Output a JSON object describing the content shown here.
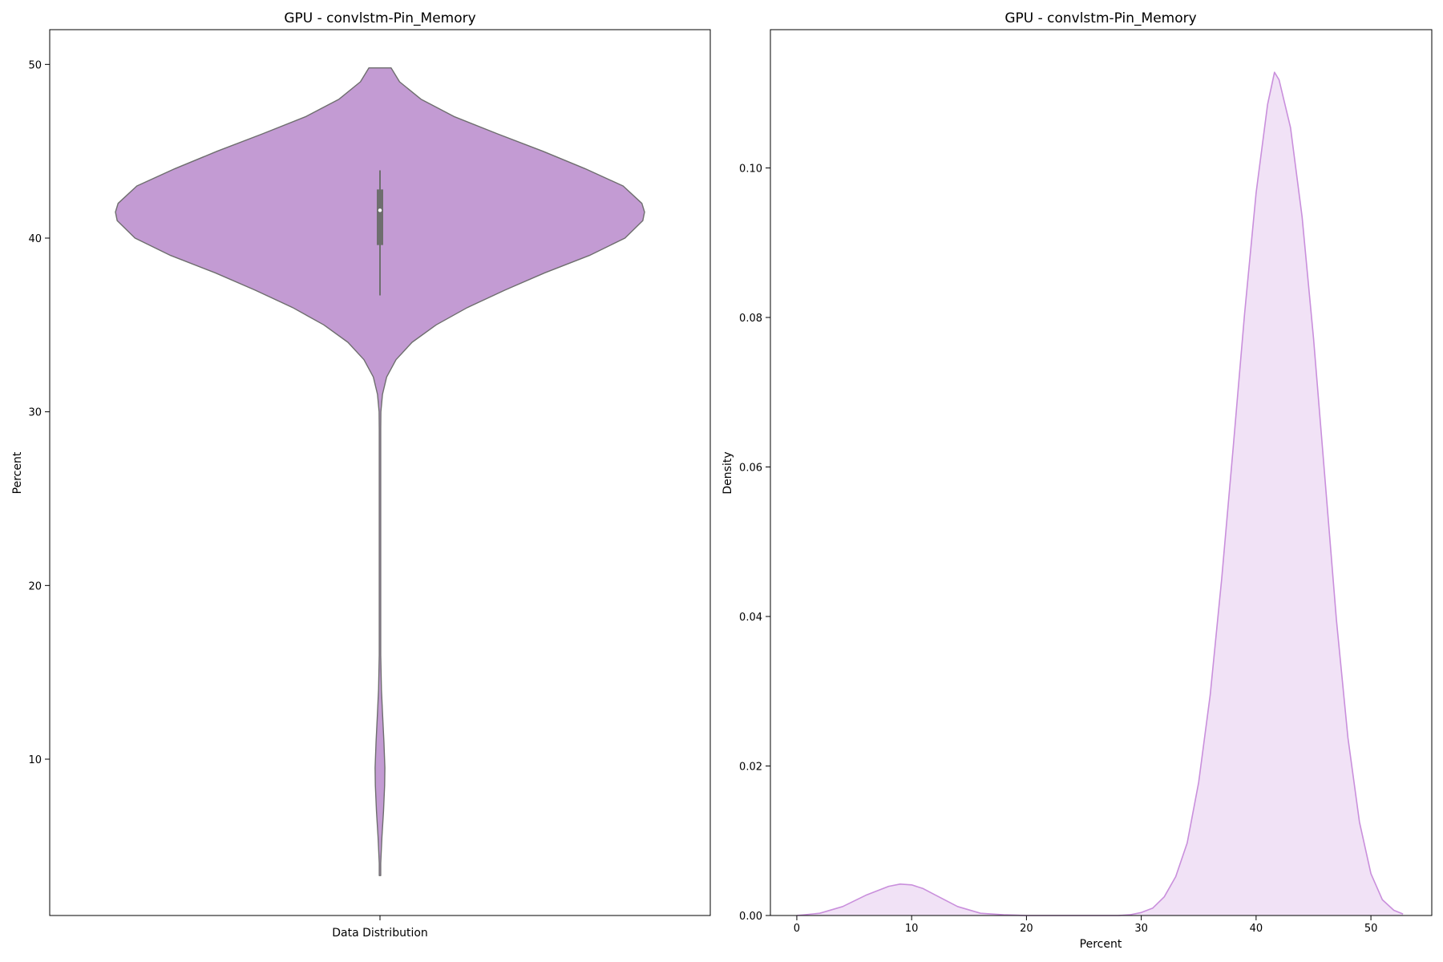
{
  "chart_data": [
    {
      "type": "violin",
      "title": "GPU - convlstm-Pin_Memory",
      "xlabel": "Data Distribution",
      "ylabel": "Percent",
      "categories": [
        "Data Distribution"
      ],
      "ylim": [
        1,
        52
      ],
      "yticks": [
        10,
        20,
        30,
        40,
        50
      ],
      "violin_color": "#c39bd3",
      "edge_color": "#6e6e6e",
      "violin_range": [
        3.3,
        49.8
      ],
      "distribution_profile": [
        {
          "y": 3.3,
          "w": 0.0
        },
        {
          "y": 4.0,
          "w": 0.08
        },
        {
          "y": 5.5,
          "w": 0.22
        },
        {
          "y": 7.0,
          "w": 0.4
        },
        {
          "y": 8.5,
          "w": 0.52
        },
        {
          "y": 9.5,
          "w": 0.55
        },
        {
          "y": 11.0,
          "w": 0.44
        },
        {
          "y": 12.5,
          "w": 0.3
        },
        {
          "y": 14.0,
          "w": 0.16
        },
        {
          "y": 16.0,
          "w": 0.04
        },
        {
          "y": 18.0,
          "w": 0.0
        },
        {
          "y": 28.0,
          "w": 0.0
        },
        {
          "y": 29.0,
          "w": 0.05
        },
        {
          "y": 30.0,
          "w": 0.1
        },
        {
          "y": 31.0,
          "w": 0.28
        },
        {
          "y": 32.0,
          "w": 0.75
        },
        {
          "y": 33.0,
          "w": 1.8
        },
        {
          "y": 34.0,
          "w": 3.6
        },
        {
          "y": 35.0,
          "w": 6.3
        },
        {
          "y": 36.0,
          "w": 9.8
        },
        {
          "y": 37.0,
          "w": 14.0
        },
        {
          "y": 38.0,
          "w": 18.5
        },
        {
          "y": 39.0,
          "w": 23.5
        },
        {
          "y": 40.0,
          "w": 27.5
        },
        {
          "y": 41.0,
          "w": 29.5
        },
        {
          "y": 41.5,
          "w": 29.7
        },
        {
          "y": 42.0,
          "w": 29.4
        },
        {
          "y": 43.0,
          "w": 27.3
        },
        {
          "y": 44.0,
          "w": 23.0
        },
        {
          "y": 45.0,
          "w": 18.3
        },
        {
          "y": 46.0,
          "w": 13.2
        },
        {
          "y": 47.0,
          "w": 8.3
        },
        {
          "y": 48.0,
          "w": 4.6
        },
        {
          "y": 49.0,
          "w": 2.2
        },
        {
          "y": 49.8,
          "w": 1.25
        }
      ],
      "box": {
        "q1": 39.6,
        "median": 41.6,
        "q3": 42.8,
        "whisker_low": 36.7,
        "whisker_high": 43.9
      }
    },
    {
      "type": "area",
      "title": "GPU - convlstm-Pin_Memory",
      "xlabel": "Percent",
      "ylabel": "Density",
      "xlim": [
        -2.3,
        55.3
      ],
      "ylim": [
        0,
        0.1185
      ],
      "xticks": [
        0,
        10,
        20,
        30,
        40,
        50
      ],
      "yticks": [
        0.0,
        0.02,
        0.04,
        0.06,
        0.08,
        0.1
      ],
      "ytick_labels": [
        "0.00",
        "0.02",
        "0.04",
        "0.06",
        "0.08",
        "0.10"
      ],
      "line_color": "#c98fdc",
      "fill_color": "#f1e2f6",
      "x": [
        0,
        2,
        4,
        6,
        8,
        9,
        10,
        11,
        12,
        14,
        16,
        18,
        20,
        22,
        24,
        26,
        27,
        28,
        29,
        30,
        31,
        32,
        33,
        34,
        35,
        36,
        37,
        38,
        39,
        40,
        41,
        41.6,
        42,
        43,
        44,
        45,
        46,
        47,
        48,
        49,
        50,
        51,
        52,
        52.8
      ],
      "y": [
        0.0,
        0.0003,
        0.0012,
        0.0027,
        0.0039,
        0.0042,
        0.0041,
        0.0036,
        0.0028,
        0.0012,
        0.0003,
        0.0001,
        0.0,
        0.0,
        0.0,
        0.0,
        0.0,
        0.0,
        0.0001,
        0.0004,
        0.001,
        0.0025,
        0.0052,
        0.0097,
        0.0178,
        0.0295,
        0.045,
        0.0625,
        0.0805,
        0.0967,
        0.1085,
        0.1128,
        0.1118,
        0.1054,
        0.0935,
        0.0772,
        0.0584,
        0.0395,
        0.0238,
        0.0125,
        0.0056,
        0.0021,
        0.0007,
        0.0002
      ]
    }
  ]
}
